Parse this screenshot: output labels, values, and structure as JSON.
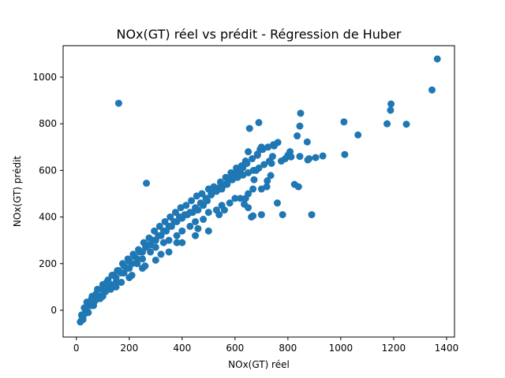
{
  "chart_data": {
    "type": "scatter",
    "title": "NOx(GT) réel vs prédit - Régression de Huber",
    "xlabel": "NOx(GT) réel",
    "ylabel": "NOx(GT) prédit",
    "xlim": [
      -50,
      1430
    ],
    "ylim": [
      -115,
      1135
    ],
    "xticks": [
      0,
      200,
      400,
      600,
      800,
      1000,
      1200,
      1400
    ],
    "yticks": [
      0,
      200,
      400,
      600,
      800,
      1000
    ],
    "grid": false,
    "legend": "none",
    "marker_color": "#1f77b4",
    "series": [
      {
        "x": [
          1365,
          1345,
          1190,
          1188,
          1175,
          1248,
          1065,
          1012,
          1015,
          160,
          848,
          845,
          932,
          905,
          880,
          875,
          873,
          845,
          835,
          808,
          800,
          812,
          790,
          775,
          762,
          748,
          742,
          738,
          735,
          722,
          700,
          695,
          690,
          685,
          680,
          672,
          668,
          662,
          655,
          650,
          640,
          630,
          620,
          610,
          600,
          590,
          580,
          570,
          555,
          540,
          525,
          510,
          495,
          480,
          460,
          440,
          420,
          400,
          380,
          360,
          340,
          320,
          300,
          280,
          262,
          240,
          220,
          200,
          180,
          160,
          140,
          120,
          100,
          80,
          60,
          40,
          30,
          20,
          15,
          25,
          45,
          65,
          90,
          110,
          130,
          150,
          170,
          190,
          210,
          230,
          250,
          270,
          290,
          310,
          330,
          350,
          370,
          390,
          410,
          430,
          450,
          470,
          490,
          510,
          530,
          550,
          570,
          590,
          610,
          630,
          650,
          670,
          690,
          710,
          730,
          700,
          668,
          650,
          635,
          760,
          780,
          720,
          640,
          560,
          890,
          825,
          840,
          265,
          110,
          150,
          200,
          250,
          300,
          350,
          400,
          450,
          500,
          550,
          600,
          650,
          700,
          350,
          400,
          450,
          500,
          300,
          250,
          200,
          150,
          100,
          50,
          70,
          90,
          120,
          180,
          230,
          280,
          330,
          380,
          430,
          480,
          530,
          580,
          620,
          540,
          460,
          380,
          320,
          260,
          210,
          170,
          130,
          85,
          55,
          35,
          22,
          28,
          38,
          48,
          58,
          75,
          95,
          115,
          135,
          155,
          175,
          195,
          215,
          235,
          255,
          275,
          295,
          315,
          335,
          355,
          375,
          395,
          415,
          435,
          455,
          475,
          500,
          520,
          545,
          565,
          585,
          605,
          625,
          645,
          665,
          685,
          705,
          725,
          745
        ],
        "y": [
          1078,
          945,
          885,
          858,
          800,
          798,
          752,
          808,
          668,
          888,
          845,
          660,
          662,
          655,
          650,
          645,
          722,
          790,
          748,
          680,
          665,
          658,
          650,
          640,
          720,
          705,
          660,
          630,
          578,
          555,
          700,
          690,
          805,
          665,
          600,
          560,
          520,
          400,
          780,
          680,
          640,
          612,
          600,
          590,
          585,
          575,
          560,
          545,
          535,
          525,
          520,
          500,
          470,
          450,
          430,
          420,
          410,
          395,
          380,
          360,
          340,
          320,
          300,
          280,
          270,
          250,
          230,
          210,
          190,
          170,
          150,
          130,
          110,
          90,
          60,
          35,
          10,
          -20,
          -50,
          -40,
          -10,
          20,
          50,
          80,
          110,
          140,
          160,
          180,
          200,
          220,
          250,
          280,
          300,
          320,
          340,
          360,
          380,
          400,
          410,
          420,
          440,
          460,
          480,
          495,
          510,
          520,
          540,
          560,
          570,
          580,
          590,
          600,
          610,
          625,
          640,
          410,
          405,
          440,
          455,
          460,
          410,
          530,
          480,
          430,
          410,
          540,
          530,
          545,
          80,
          120,
          180,
          220,
          270,
          300,
          340,
          380,
          420,
          450,
          480,
          500,
          520,
          250,
          290,
          320,
          340,
          215,
          180,
          140,
          100,
          60,
          20,
          40,
          60,
          100,
          160,
          200,
          250,
          290,
          320,
          360,
          390,
          430,
          460,
          480,
          410,
          350,
          290,
          240,
          190,
          150,
          120,
          90,
          50,
          20,
          0,
          -30,
          -20,
          10,
          30,
          50,
          70,
          90,
          120,
          150,
          170,
          200,
          220,
          240,
          260,
          290,
          310,
          340,
          360,
          380,
          400,
          420,
          440,
          450,
          470,
          490,
          500,
          520,
          530,
          550,
          570,
          590,
          610,
          620,
          630,
          650,
          670,
          690,
          700,
          710
        ]
      }
    ]
  }
}
